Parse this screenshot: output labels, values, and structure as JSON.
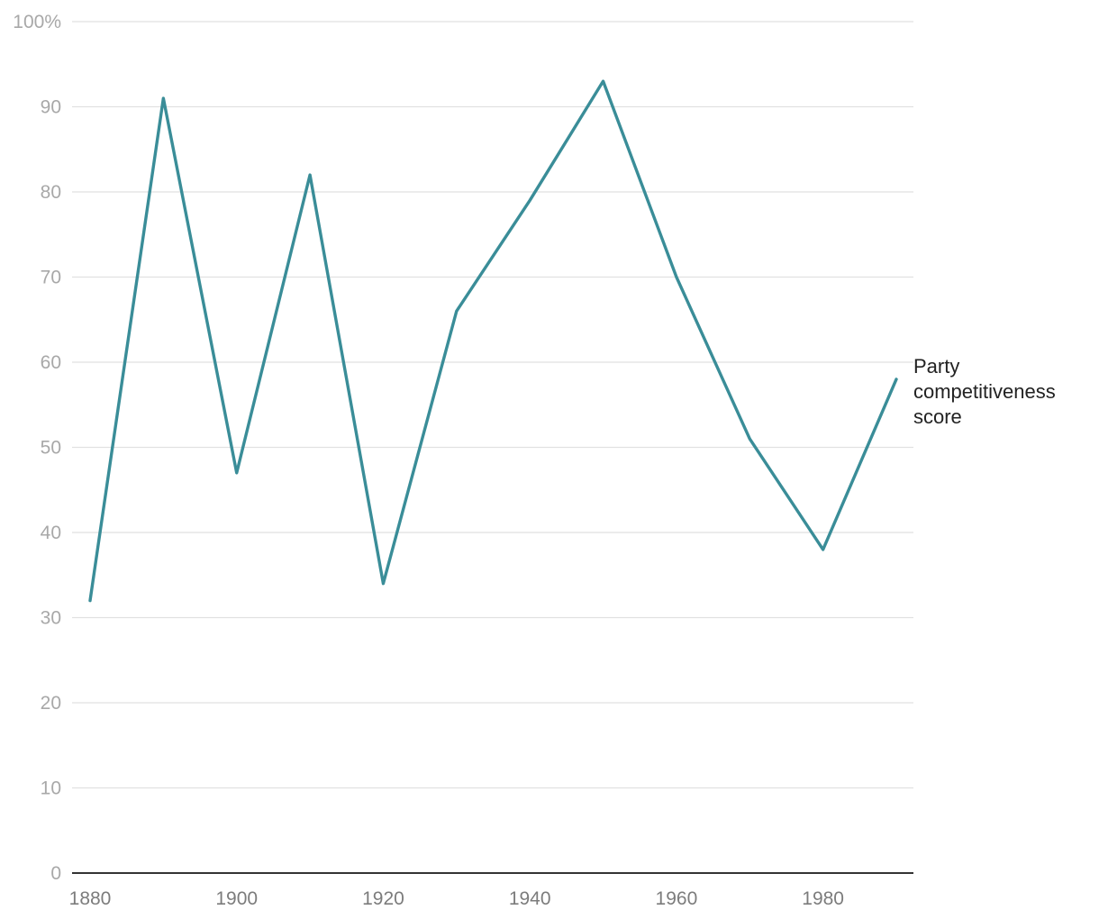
{
  "chart_data": {
    "type": "line",
    "title": "",
    "xlabel": "",
    "ylabel": "",
    "x": [
      1880,
      1890,
      1900,
      1910,
      1920,
      1930,
      1940,
      1950,
      1960,
      1970,
      1980,
      1990
    ],
    "series": [
      {
        "name": "Party competitiveness score",
        "label_lines": [
          "Party",
          "competitiveness",
          "score"
        ],
        "values": [
          32,
          91,
          47,
          82,
          34,
          66,
          79,
          93,
          70,
          51,
          38,
          58
        ],
        "color": "#3a8d98"
      }
    ],
    "xlim": [
      1880,
      1990
    ],
    "ylim": [
      0,
      100
    ],
    "x_ticks": [
      1880,
      1900,
      1920,
      1940,
      1960,
      1980
    ],
    "x_tick_labels": [
      "1880",
      "1900",
      "1920",
      "1940",
      "1960",
      "1980"
    ],
    "y_ticks": [
      0,
      10,
      20,
      30,
      40,
      50,
      60,
      70,
      80,
      90,
      100
    ],
    "y_tick_labels": [
      "0",
      "10",
      "20",
      "30",
      "40",
      "50",
      "60",
      "70",
      "80",
      "90",
      "100%"
    ],
    "grid": "horizontal",
    "legend": "direct label at line end"
  }
}
